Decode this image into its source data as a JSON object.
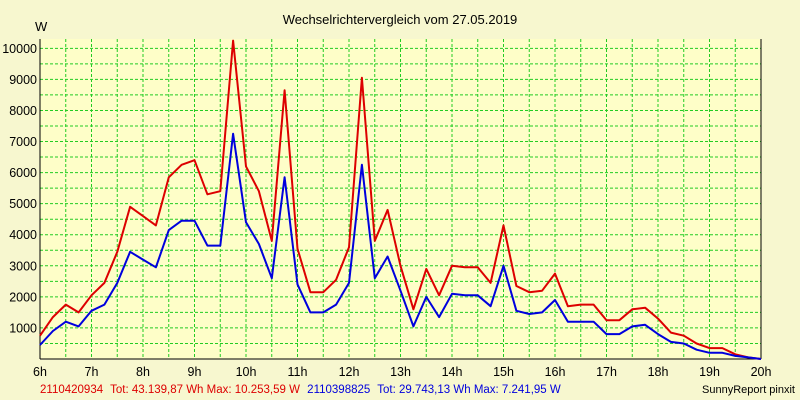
{
  "chart_data": {
    "type": "line",
    "title": "Wechselrichtervergleich vom 27.05.2019",
    "unit_label": "W",
    "xlabel": "",
    "ylabel": "",
    "x_ticks": [
      "6h",
      "7h",
      "8h",
      "9h",
      "10h",
      "11h",
      "12h",
      "13h",
      "14h",
      "15h",
      "16h",
      "17h",
      "18h",
      "19h",
      "20h"
    ],
    "xlim_hours": [
      6,
      20
    ],
    "ylim": [
      0,
      10300
    ],
    "y_ticks": [
      1000,
      2000,
      3000,
      4000,
      5000,
      6000,
      7000,
      8000,
      9000,
      10000
    ],
    "grid": true,
    "colors": {
      "background": "#f7f7cf",
      "plot_area": "#fefec8",
      "grid": "#22cc22",
      "axis": "#000000"
    },
    "x": [
      "06:00",
      "06:15",
      "06:30",
      "06:45",
      "07:00",
      "07:15",
      "07:30",
      "07:45",
      "08:00",
      "08:15",
      "08:30",
      "08:45",
      "09:00",
      "09:15",
      "09:30",
      "09:45",
      "10:00",
      "10:15",
      "10:30",
      "10:45",
      "11:00",
      "11:15",
      "11:30",
      "11:45",
      "12:00",
      "12:15",
      "12:30",
      "12:45",
      "13:00",
      "13:15",
      "13:30",
      "13:45",
      "14:00",
      "14:15",
      "14:30",
      "14:45",
      "15:00",
      "15:15",
      "15:30",
      "15:45",
      "16:00",
      "16:15",
      "16:30",
      "16:45",
      "17:00",
      "17:15",
      "17:30",
      "17:45",
      "18:00",
      "18:15",
      "18:30",
      "18:45",
      "19:00",
      "19:15",
      "19:30",
      "19:45",
      "20:00"
    ],
    "series": [
      {
        "name": "2110420934",
        "color": "#dd0000",
        "values": [
          750,
          1350,
          1750,
          1500,
          2050,
          2450,
          3450,
          4900,
          4600,
          4300,
          5850,
          6250,
          6400,
          5300,
          5400,
          10250,
          6200,
          5400,
          3800,
          8650,
          3550,
          2150,
          2150,
          2550,
          3600,
          9050,
          3800,
          4800,
          3000,
          1600,
          2900,
          2050,
          3000,
          2950,
          2950,
          2450,
          4300,
          2350,
          2150,
          2200,
          2750,
          1700,
          1750,
          1750,
          1250,
          1250,
          1600,
          1650,
          1300,
          850,
          750,
          500,
          350,
          350,
          150,
          50,
          0
        ]
      },
      {
        "name": "2110398825",
        "color": "#0000dd",
        "values": [
          450,
          900,
          1200,
          1050,
          1550,
          1750,
          2450,
          3450,
          3200,
          2950,
          4150,
          4450,
          4450,
          3650,
          3650,
          7250,
          4400,
          3700,
          2600,
          5850,
          2400,
          1500,
          1500,
          1750,
          2450,
          6250,
          2600,
          3300,
          2200,
          1050,
          2000,
          1350,
          2100,
          2050,
          2050,
          1700,
          3000,
          1550,
          1450,
          1500,
          1900,
          1200,
          1200,
          1200,
          800,
          800,
          1050,
          1100,
          800,
          550,
          500,
          300,
          200,
          200,
          100,
          50,
          0
        ]
      }
    ]
  },
  "footer": {
    "series1_name": "2110420934",
    "series1_stats": "Tot: 43.139,87 Wh Max: 10.253,59 W",
    "series2_name": "2110398825",
    "series2_stats": "Tot: 29.743,13 Wh Max: 7.241,95 W",
    "credit": "SunnyReport pinxit"
  }
}
